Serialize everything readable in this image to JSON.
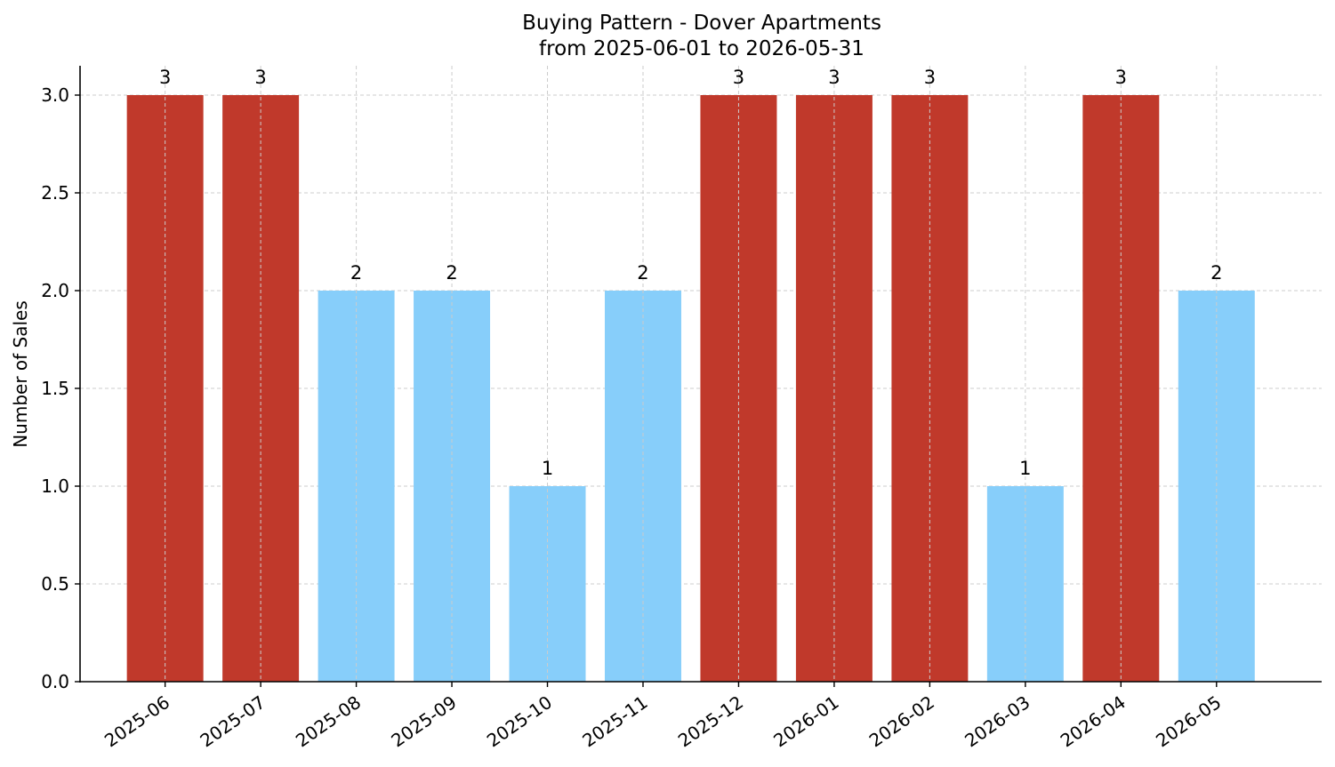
{
  "chart_data": {
    "type": "bar",
    "title": "Buying Pattern - Dover Apartments",
    "subtitle": "from 2025-06-01 to 2026-05-31",
    "xlabel": "",
    "ylabel": "Number of Sales",
    "ylim": [
      0,
      3.15
    ],
    "yticks": [
      "0.0",
      "0.5",
      "1.0",
      "1.5",
      "2.0",
      "2.5",
      "3.0"
    ],
    "categories": [
      "2025-06",
      "2025-07",
      "2025-08",
      "2025-09",
      "2025-10",
      "2025-11",
      "2025-12",
      "2026-01",
      "2026-02",
      "2026-03",
      "2026-04",
      "2026-05"
    ],
    "values": [
      3,
      3,
      2,
      2,
      1,
      2,
      3,
      3,
      3,
      1,
      3,
      2
    ],
    "data_labels": [
      "3",
      "3",
      "2",
      "2",
      "1",
      "2",
      "3",
      "3",
      "3",
      "1",
      "3",
      "2"
    ],
    "grid": true,
    "legend": "none",
    "colors": {
      "high": "#c0392b",
      "low": "#87cefa"
    },
    "bar_colors": [
      "high",
      "high",
      "low",
      "low",
      "low",
      "low",
      "high",
      "high",
      "high",
      "low",
      "high",
      "low"
    ]
  }
}
